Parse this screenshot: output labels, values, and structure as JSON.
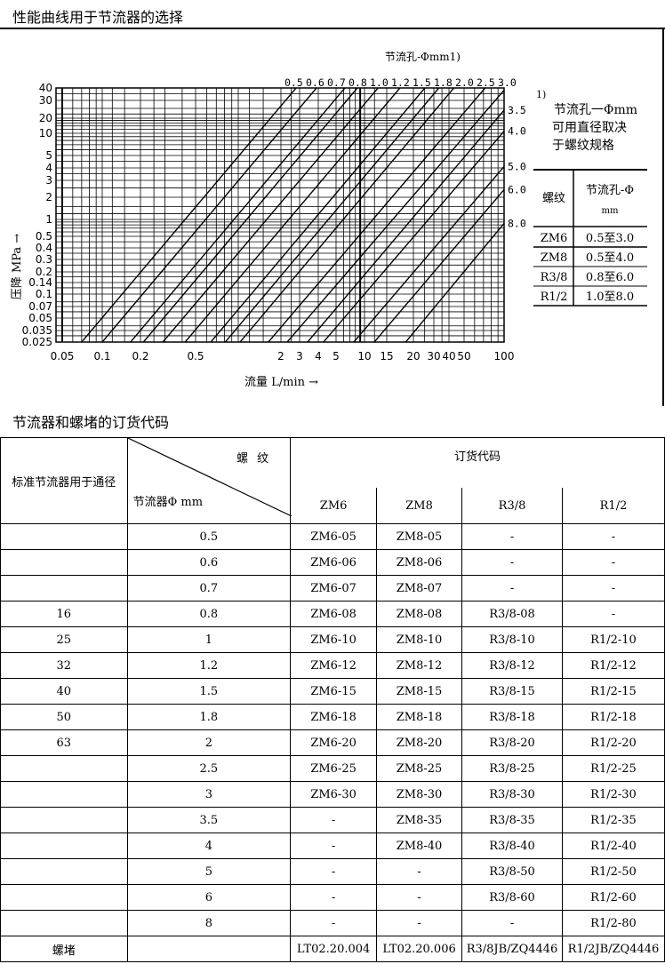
{
  "section1_title": "性能曲线用于节流器的选择",
  "section2_title": "节流器和螺堵的订货代码",
  "chart_data": {
    "type": "line",
    "title": "节流孔-Φmm1)",
    "xlabel": "流量 L/min →",
    "ylabel": "压降 MPa →",
    "xscale": "log",
    "yscale": "log",
    "xlim": [
      0.05,
      100
    ],
    "ylim": [
      0.025,
      40
    ],
    "grid": true,
    "x_ticks": [
      "0.05",
      "0.1",
      "0.2",
      "0.5",
      "2",
      "3",
      "4",
      "5",
      "10",
      "15",
      "20",
      "30",
      "40",
      "50",
      "100"
    ],
    "y_ticks": [
      "40",
      "30",
      "20",
      "10",
      "5",
      "4",
      "3",
      "2",
      "1",
      "0.5",
      "0.4",
      "0.3",
      "0.2",
      "0.14",
      "0.1",
      "0.07",
      "0.05",
      "0.035",
      "0.025"
    ],
    "series": [
      {
        "name": "0.5",
        "points": [
          [
            0.07,
            0.025
          ],
          [
            2.78,
            40
          ]
        ]
      },
      {
        "name": "0.6",
        "points": [
          [
            0.1,
            0.025
          ],
          [
            3.89,
            40
          ]
        ]
      },
      {
        "name": "0.7",
        "points": [
          [
            0.167,
            0.025
          ],
          [
            6.2,
            40
          ]
        ]
      },
      {
        "name": "0.8",
        "points": [
          [
            0.21,
            0.025
          ],
          [
            8.4,
            40
          ]
        ]
      },
      {
        "name": "1.0",
        "points": [
          [
            0.29,
            0.025
          ],
          [
            12.8,
            40
          ]
        ]
      },
      {
        "name": "1.2",
        "points": [
          [
            0.42,
            0.025
          ],
          [
            17.3,
            40
          ]
        ]
      },
      {
        "name": "1.5",
        "points": [
          [
            0.64,
            0.025
          ],
          [
            25.1,
            40
          ]
        ]
      },
      {
        "name": "1.8",
        "points": [
          [
            0.81,
            0.025
          ],
          [
            33,
            40
          ]
        ]
      },
      {
        "name": "2.0",
        "points": [
          [
            1.03,
            0.025
          ],
          [
            43,
            40
          ]
        ]
      },
      {
        "name": "2.5",
        "points": [
          [
            1.63,
            0.025
          ],
          [
            72,
            40
          ]
        ]
      },
      {
        "name": "3.0",
        "points": [
          [
            2.29,
            0.025
          ],
          [
            100,
            38
          ]
        ]
      },
      {
        "name": "3.5",
        "points": [
          [
            3.39,
            0.025
          ],
          [
            100,
            24
          ]
        ]
      },
      {
        "name": "4.0",
        "points": [
          [
            4.27,
            0.025
          ],
          [
            100,
            11
          ]
        ]
      },
      {
        "name": "5.0",
        "points": [
          [
            7.7,
            0.025
          ],
          [
            100,
            4.1
          ]
        ]
      },
      {
        "name": "6.0",
        "points": [
          [
            11.95,
            0.025
          ],
          [
            100,
            2.4
          ]
        ]
      },
      {
        "name": "8.0",
        "points": [
          [
            18.4,
            0.025
          ],
          [
            100,
            0.85
          ]
        ]
      }
    ]
  },
  "note": {
    "marker": "1)",
    "lines": [
      "节流孔一Φmm",
      "可用直径取决",
      "于螺纹规格"
    ]
  },
  "size_table": {
    "headers": [
      "螺纹",
      "节流孔-Φ",
      "mm"
    ],
    "rows": [
      [
        "ZM6",
        "0.5至3.0"
      ],
      [
        "ZM8",
        "0.5至4.0"
      ],
      [
        "R3/8",
        "0.8至6.0"
      ],
      [
        "R1/2",
        "1.0至8.0"
      ]
    ]
  },
  "order_table": {
    "col1_header": "标准节流器用于通径",
    "diag_top": "螺纹",
    "diag_bottom": "节流器Φ   mm",
    "group_header": "订货代码",
    "thread_headers": [
      "ZM6",
      "ZM8",
      "R3/8",
      "R1/2"
    ],
    "rows": [
      [
        "",
        "0.5",
        "ZM6-05",
        "ZM8-05",
        "-",
        "-"
      ],
      [
        "",
        "0.6",
        "ZM6-06",
        "ZM8-06",
        "-",
        "-"
      ],
      [
        "",
        "0.7",
        "ZM6-07",
        "ZM8-07",
        "-",
        "-"
      ],
      [
        "16",
        "0.8",
        "ZM6-08",
        "ZM8-08",
        "R3/8-08",
        "-"
      ],
      [
        "25",
        "1",
        "ZM6-10",
        "ZM8-10",
        "R3/8-10",
        "R1/2-10"
      ],
      [
        "32",
        "1.2",
        "ZM6-12",
        "ZM8-12",
        "R3/8-12",
        "R1/2-12"
      ],
      [
        "40",
        "1.5",
        "ZM6-15",
        "ZM8-15",
        "R3/8-15",
        "R1/2-15"
      ],
      [
        "50",
        "1.8",
        "ZM6-18",
        "ZM8-18",
        "R3/8-18",
        "R1/2-18"
      ],
      [
        "63",
        "2",
        "ZM6-20",
        "ZM8-20",
        "R3/8-20",
        "R1/2-20"
      ],
      [
        "",
        "2.5",
        "ZM6-25",
        "ZM8-25",
        "R3/8-25",
        "R1/2-25"
      ],
      [
        "",
        "3",
        "ZM6-30",
        "ZM8-30",
        "R3/8-30",
        "R1/2-30"
      ],
      [
        "",
        "3.5",
        "-",
        "ZM8-35",
        "R3/8-35",
        "R1/2-35"
      ],
      [
        "",
        "4",
        "-",
        "ZM8-40",
        "R3/8-40",
        "R1/2-40"
      ],
      [
        "",
        "5",
        "-",
        "-",
        "R3/8-50",
        "R1/2-50"
      ],
      [
        "",
        "6",
        "-",
        "-",
        "R3/8-60",
        "R1/2-60"
      ],
      [
        "",
        "8",
        "-",
        "-",
        "-",
        "R1/2-80"
      ],
      [
        "螺堵",
        "",
        "LT02.20.004",
        "LT02.20.006",
        "R3/8JB/ZQ4446",
        "R1/2JB/ZQ4446"
      ]
    ]
  }
}
